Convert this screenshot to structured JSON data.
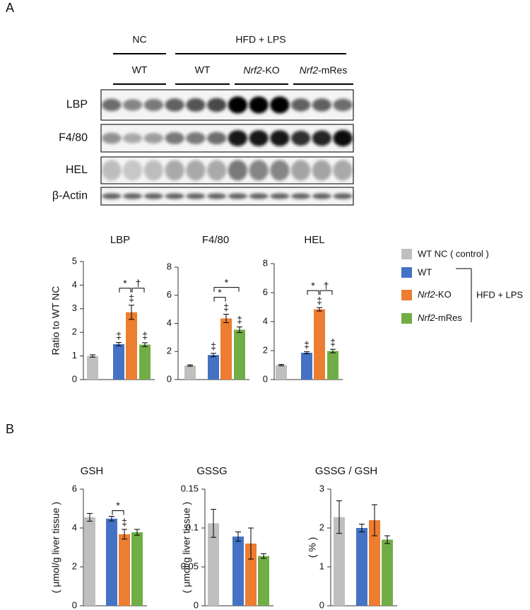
{
  "panels": [
    "A",
    "B"
  ],
  "blot": {
    "groups": [
      "NC",
      "HFD + LPS"
    ],
    "subgroups": [
      "WT",
      "WT",
      "Nrf2-KO",
      "Nrf2-mRes"
    ],
    "rows": [
      "LBP",
      "F4/80",
      "HEL",
      "β-Actin"
    ]
  },
  "legend": {
    "items": [
      {
        "name": "WT NC ( control )",
        "color": "#bfbfbf"
      },
      {
        "name": "WT",
        "color": "#4472c4"
      },
      {
        "name": "Nrf2-KO",
        "color": "#ed7d31"
      },
      {
        "name": "Nrf2-mRes",
        "color": "#70ad47"
      }
    ],
    "group": "HFD + LPS"
  },
  "chart_data": [
    {
      "type": "bar",
      "title": "LBP",
      "y_label": "Ratio to WT NC",
      "values": [
        1.0,
        1.5,
        2.85,
        1.48
      ],
      "errors": [
        0.05,
        0.07,
        0.3,
        0.08
      ],
      "markers": [
        null,
        "‡",
        "‡",
        "‡"
      ],
      "brackets": [
        {
          "from": 1,
          "to": 2,
          "text": "*"
        },
        {
          "from": 2,
          "to": 3,
          "text": "†"
        }
      ],
      "ylim": [
        0,
        5
      ],
      "yticks": [
        0,
        1,
        2,
        3,
        4,
        5
      ]
    },
    {
      "type": "bar",
      "title": "F4/80",
      "values": [
        1.0,
        1.75,
        4.35,
        3.55
      ],
      "errors": [
        0.05,
        0.12,
        0.3,
        0.2
      ],
      "markers": [
        null,
        "‡",
        "‡",
        "‡"
      ],
      "brackets": [
        {
          "from": 1,
          "to": 2,
          "text": "*"
        },
        {
          "from": 1,
          "to": 3,
          "text": "*"
        }
      ],
      "ylim": [
        0,
        8
      ],
      "yticks": [
        0,
        2,
        4,
        6,
        8
      ]
    },
    {
      "type": "bar",
      "title": "HEL",
      "values": [
        1.0,
        1.85,
        4.85,
        1.97
      ],
      "errors": [
        0.05,
        0.07,
        0.12,
        0.12
      ],
      "markers": [
        null,
        "‡",
        "‡",
        "‡"
      ],
      "brackets": [
        {
          "from": 1,
          "to": 2,
          "text": "*"
        },
        {
          "from": 2,
          "to": 3,
          "text": "†"
        }
      ],
      "ylim": [
        0,
        8
      ],
      "yticks": [
        0,
        2,
        4,
        6,
        8
      ]
    },
    {
      "type": "bar",
      "title": "GSH",
      "y_label": "( μmol/g liver tissue )",
      "values": [
        4.55,
        4.48,
        3.68,
        3.78
      ],
      "errors": [
        0.2,
        0.12,
        0.25,
        0.15
      ],
      "markers": [
        null,
        null,
        "‡",
        null
      ],
      "brackets": [
        {
          "from": 1,
          "to": 2,
          "text": "*"
        }
      ],
      "ylim": [
        0,
        6
      ],
      "yticks": [
        0,
        2,
        4,
        6
      ]
    },
    {
      "type": "bar",
      "title": "GSSG",
      "y_label": "( μmol/g liver tissue )",
      "values": [
        0.106,
        0.089,
        0.08,
        0.064
      ],
      "errors": [
        0.018,
        0.006,
        0.02,
        0.003
      ],
      "ylim": [
        0,
        0.15
      ],
      "yticks": [
        0,
        0.05,
        0.1,
        0.15
      ]
    },
    {
      "type": "bar",
      "title": "GSSG / GSH",
      "y_label": "( % )",
      "values": [
        2.28,
        2.0,
        2.2,
        1.7
      ],
      "errors": [
        0.42,
        0.1,
        0.4,
        0.1
      ],
      "ylim": [
        0,
        3
      ],
      "yticks": [
        0,
        1,
        2,
        3
      ]
    }
  ]
}
